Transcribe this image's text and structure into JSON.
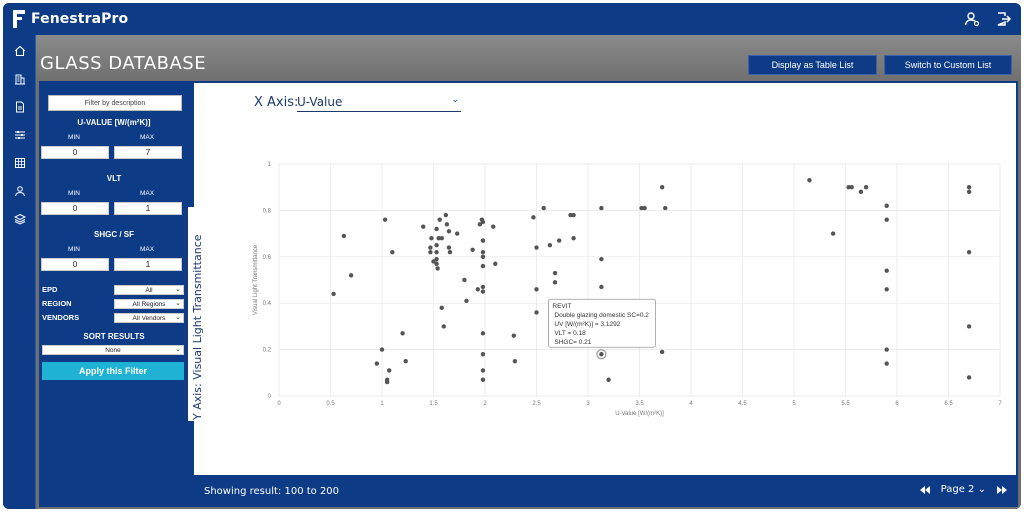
{
  "app": {
    "name": "FenestraPro"
  },
  "colors": {
    "primary": "#0d3b85",
    "accent": "#1fb2d4",
    "point": "#555555"
  },
  "header": {
    "title": "GLASS DATABASE",
    "table_button": "Display as Table List",
    "custom_button": "Switch to Custom List"
  },
  "nav": {
    "items": [
      "home-icon",
      "building-icon",
      "document-icon",
      "sliders-icon",
      "grid-icon",
      "user-icon",
      "layers-icon"
    ]
  },
  "filters": {
    "search_placeholder": "Filter by description",
    "uvalue": {
      "heading": "U-VALUE [W/(m²K)]",
      "min_label": "MIN",
      "max_label": "MAX",
      "min": "0",
      "max": "7"
    },
    "vlt": {
      "heading": "VLT",
      "min_label": "MIN",
      "max_label": "MAX",
      "min": "0",
      "max": "1"
    },
    "shgc": {
      "heading": "SHGC / SF",
      "min_label": "MIN",
      "max_label": "MAX",
      "min": "0",
      "max": "1"
    },
    "epd": {
      "label": "EPD",
      "value": "All"
    },
    "region": {
      "label": "REGION",
      "value": "All Regions"
    },
    "vendors": {
      "label": "VENDORS",
      "value": "All Vendors"
    },
    "sort": {
      "heading": "SORT RESULTS",
      "value": "None"
    },
    "apply_label": "Apply this Filter"
  },
  "axis_selects": {
    "x_prefix": "X Axis:",
    "x_value": "U-Value",
    "y_value": "Y Axis: Visual Light Transmittance"
  },
  "footer": {
    "showing": "Showing result: 100 to 200",
    "page": "Page 2"
  },
  "tooltip": {
    "lines": [
      "REVIT",
      "Double glazing domestic SC=0.2",
      "UV [W/(m²K)] = 3.1292",
      "VLT = 0.18",
      "SHGC= 0.21"
    ]
  },
  "chart_data": {
    "type": "scatter",
    "xlabel": "U-Value [W/(m²K)]",
    "ylabel": "Visual Light Transmittance",
    "xlim": [
      0,
      7
    ],
    "ylim": [
      0,
      1
    ],
    "xticks": [
      "0",
      "0.5",
      "1",
      "1.5",
      "2",
      "2.5",
      "3",
      "3.5",
      "4",
      "4.5",
      "5",
      "5.5",
      "6",
      "6.5",
      "7"
    ],
    "yticks": [
      "0",
      "0.2",
      "0.4",
      "0.6",
      "0.8",
      "1"
    ],
    "grid": true,
    "highlight": [
      3.13,
      0.18
    ],
    "points": [
      [
        0.53,
        0.44
      ],
      [
        0.63,
        0.69
      ],
      [
        0.7,
        0.52
      ],
      [
        0.95,
        0.14
      ],
      [
        1.0,
        0.2
      ],
      [
        1.03,
        0.76
      ],
      [
        1.05,
        0.07
      ],
      [
        1.05,
        0.06
      ],
      [
        1.07,
        0.11
      ],
      [
        1.1,
        0.62
      ],
      [
        1.2,
        0.27
      ],
      [
        1.23,
        0.15
      ],
      [
        1.4,
        0.73
      ],
      [
        1.47,
        0.64
      ],
      [
        1.47,
        0.62
      ],
      [
        1.48,
        0.68
      ],
      [
        1.5,
        0.58
      ],
      [
        1.53,
        0.72
      ],
      [
        1.53,
        0.65
      ],
      [
        1.53,
        0.62
      ],
      [
        1.53,
        0.59
      ],
      [
        1.53,
        0.57
      ],
      [
        1.54,
        0.55
      ],
      [
        1.55,
        0.68
      ],
      [
        1.56,
        0.76
      ],
      [
        1.58,
        0.68
      ],
      [
        1.58,
        0.38
      ],
      [
        1.6,
        0.3
      ],
      [
        1.62,
        0.78
      ],
      [
        1.63,
        0.74
      ],
      [
        1.65,
        0.71
      ],
      [
        1.65,
        0.64
      ],
      [
        1.66,
        0.62
      ],
      [
        1.73,
        0.7
      ],
      [
        1.8,
        0.5
      ],
      [
        1.82,
        0.41
      ],
      [
        1.88,
        0.63
      ],
      [
        1.93,
        0.46
      ],
      [
        1.95,
        0.74
      ],
      [
        1.97,
        0.76
      ],
      [
        1.98,
        0.75
      ],
      [
        1.98,
        0.67
      ],
      [
        1.98,
        0.67
      ],
      [
        1.98,
        0.62
      ],
      [
        1.98,
        0.6
      ],
      [
        1.98,
        0.56
      ],
      [
        1.98,
        0.47
      ],
      [
        1.98,
        0.45
      ],
      [
        1.98,
        0.27
      ],
      [
        1.98,
        0.18
      ],
      [
        1.98,
        0.11
      ],
      [
        1.98,
        0.07
      ],
      [
        2.08,
        0.73
      ],
      [
        2.1,
        0.57
      ],
      [
        2.28,
        0.26
      ],
      [
        2.29,
        0.15
      ],
      [
        2.47,
        0.77
      ],
      [
        2.5,
        0.64
      ],
      [
        2.5,
        0.46
      ],
      [
        2.5,
        0.36
      ],
      [
        2.57,
        0.81
      ],
      [
        2.63,
        0.65
      ],
      [
        2.68,
        0.53
      ],
      [
        2.68,
        0.49
      ],
      [
        2.72,
        0.67
      ],
      [
        2.83,
        0.78
      ],
      [
        2.86,
        0.78
      ],
      [
        2.86,
        0.68
      ],
      [
        3.13,
        0.81
      ],
      [
        3.13,
        0.59
      ],
      [
        3.13,
        0.47
      ],
      [
        3.13,
        0.18
      ],
      [
        3.2,
        0.07
      ],
      [
        3.52,
        0.81
      ],
      [
        3.55,
        0.81
      ],
      [
        3.72,
        0.9
      ],
      [
        3.75,
        0.81
      ],
      [
        3.72,
        0.19
      ],
      [
        5.15,
        0.93
      ],
      [
        5.38,
        0.7
      ],
      [
        5.53,
        0.9
      ],
      [
        5.56,
        0.9
      ],
      [
        5.65,
        0.88
      ],
      [
        5.7,
        0.9
      ],
      [
        5.9,
        0.82
      ],
      [
        5.9,
        0.76
      ],
      [
        5.9,
        0.54
      ],
      [
        5.9,
        0.46
      ],
      [
        5.9,
        0.2
      ],
      [
        5.9,
        0.14
      ],
      [
        6.7,
        0.9
      ],
      [
        6.7,
        0.88
      ],
      [
        6.7,
        0.62
      ],
      [
        6.7,
        0.3
      ],
      [
        6.7,
        0.08
      ]
    ]
  }
}
